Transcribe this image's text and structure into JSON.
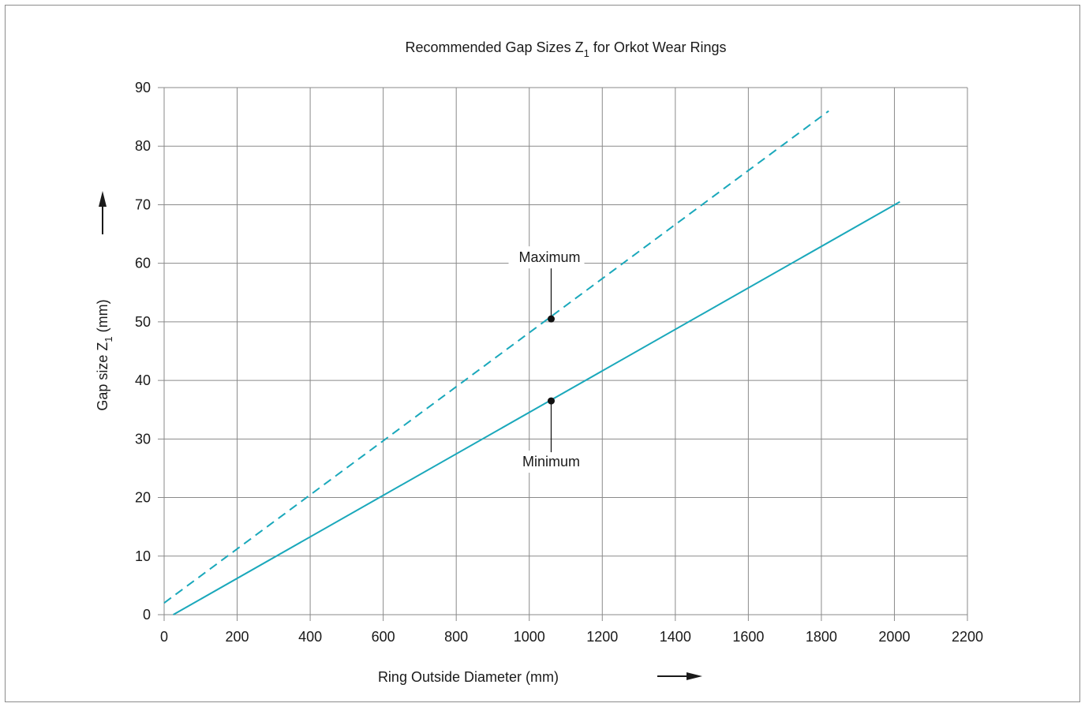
{
  "chart_data": {
    "type": "line",
    "title": "Recommended Gap Sizes Z",
    "title_sub": "1",
    "title_suffix": " for Orkot Wear Rings",
    "xlabel": "Ring Outside Diameter (mm)",
    "ylabel": "Gap size Z",
    "ylabel_sub": "1",
    "ylabel_suffix": " (mm)",
    "xlim": [
      0,
      2200
    ],
    "ylim": [
      0,
      90
    ],
    "x_ticks": [
      0,
      200,
      400,
      600,
      800,
      1000,
      1200,
      1400,
      1600,
      1800,
      2000,
      2200
    ],
    "y_ticks": [
      0,
      10,
      20,
      30,
      40,
      50,
      60,
      70,
      80,
      90
    ],
    "grid": true,
    "line_color": "#1aa8bb",
    "series": [
      {
        "name": "Maximum",
        "style": "dashed",
        "x": [
          0,
          1820
        ],
        "y": [
          2,
          86
        ]
      },
      {
        "name": "Minimum",
        "style": "solid",
        "x": [
          25,
          2015
        ],
        "y": [
          0,
          70.5
        ]
      }
    ],
    "annotations": [
      {
        "text": "Maximum",
        "point": [
          1060,
          50.5
        ],
        "label_position": "above"
      },
      {
        "text": "Minimum",
        "point": [
          1060,
          36.5
        ],
        "label_position": "below"
      }
    ]
  }
}
